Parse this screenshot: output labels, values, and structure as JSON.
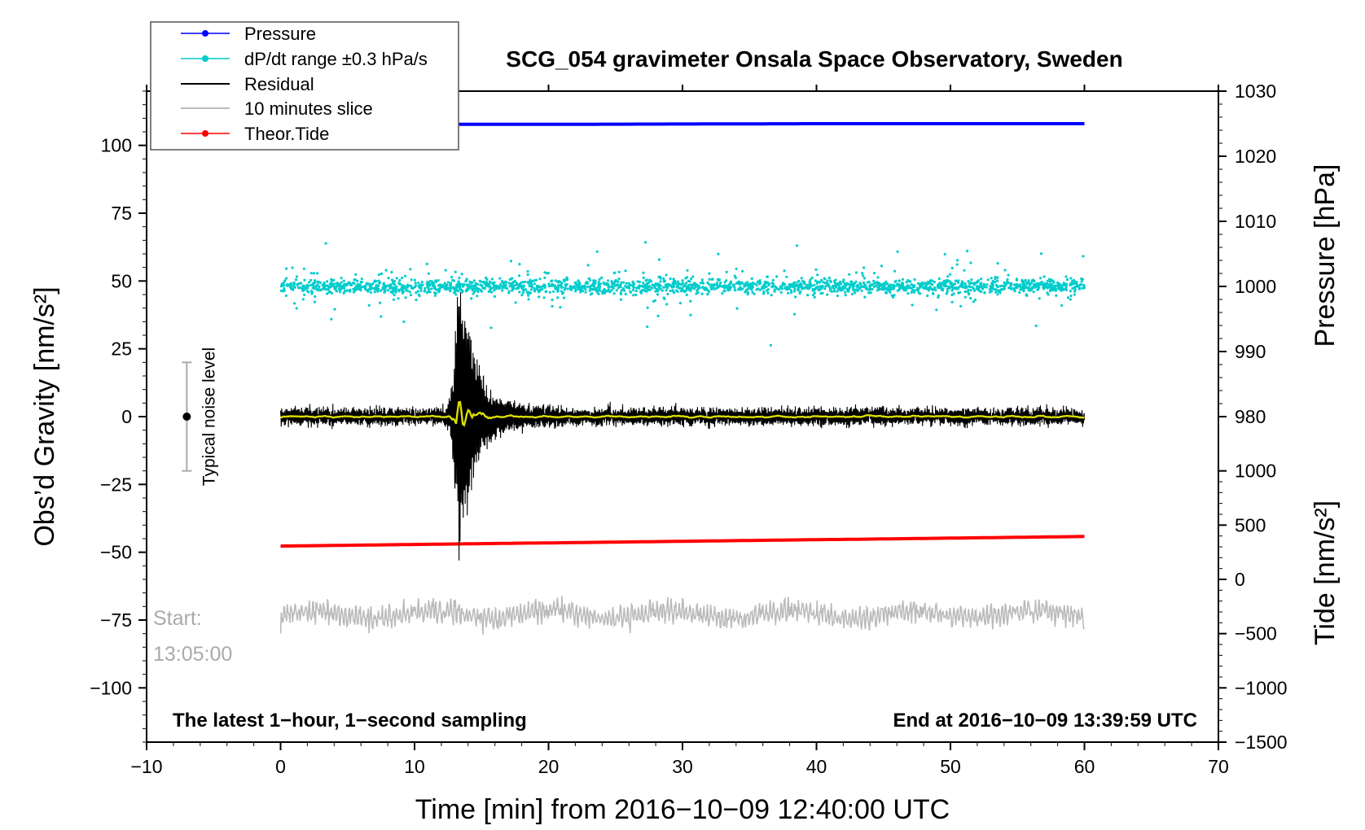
{
  "chart_data": {
    "type": "line",
    "title": "SCG_054 gravimeter Onsala Space Observatory, Sweden",
    "xlabel": "Time [min] from 2016−10−09 12:40:00 UTC",
    "ylabel_left": "Obs’d Gravity [nm/s²]",
    "ylabel_pressure": "Pressure [hPa]",
    "ylabel_tide": "Tide [nm/s²]",
    "xlim": [
      -10,
      70
    ],
    "ylim_left": [
      -120,
      120
    ],
    "x_ticks": [
      -10,
      0,
      10,
      20,
      30,
      40,
      50,
      60,
      70
    ],
    "x_tick_labels": [
      "−10",
      "0",
      "10",
      "20",
      "30",
      "40",
      "50",
      "60",
      "70"
    ],
    "y_ticks_left": [
      100,
      75,
      50,
      25,
      0,
      -25,
      -50,
      -75,
      -100
    ],
    "y_tick_labels_left": [
      "100",
      "75",
      "50",
      "25",
      "0",
      "−25",
      "−50",
      "−75",
      "−100"
    ],
    "pressure_ticks": [
      1030,
      1020,
      1010,
      1000,
      990,
      980
    ],
    "pressure_tick_labels": [
      "1030",
      "1020",
      "1010",
      "1000",
      "990",
      "980"
    ],
    "pressure_axis": {
      "value_top": 1030,
      "value_bottom": 980,
      "left_value_top": 120,
      "left_value_bottom": 0
    },
    "tide_ticks": [
      1000,
      500,
      0,
      -500,
      -1000,
      -1500
    ],
    "tide_tick_labels": [
      "1000",
      "500",
      "0",
      "−500",
      "−1000",
      "−1500"
    ],
    "tide_axis": {
      "value_top": 1000,
      "value_bottom": -1500,
      "left_value_top": -20,
      "left_value_bottom": -120
    },
    "series": [
      {
        "name": "Pressure",
        "color": "#0000ff",
        "x_range": [
          0,
          60
        ],
        "pressure_hPa": [
          1024.9,
          1024.9,
          1025.0,
          1025.0
        ]
      },
      {
        "name": "dP/dt range ±0.3 hPa/s",
        "color": "#00cccc",
        "x_range": [
          0,
          60
        ],
        "center_pressure_hPa": 1000
      },
      {
        "name": "Residual",
        "color": "#000000",
        "x_range": [
          0,
          60
        ],
        "baseline": 0,
        "typical_amplitude": 3,
        "event_peak_minutes": 13.5,
        "event_range": [
          -53,
          52
        ]
      },
      {
        "name": "10 minutes slice",
        "color": "#bbbbbb",
        "x_range": [
          0,
          60
        ],
        "center": -73
      },
      {
        "name": "Theor.Tide",
        "color": "#ff0000",
        "x_range": [
          0,
          60
        ],
        "tide_nm_s2": [
          307,
          395
        ]
      }
    ],
    "smoothed_residual_color": "#dddd00",
    "noise_level": {
      "label": "Typical noise level",
      "x": -7,
      "center": 0,
      "range": [
        -20,
        20
      ]
    },
    "start_label": "Start:",
    "start_time": "13:05:00",
    "footer_left": "The latest 1−hour, 1−second sampling",
    "footer_right": "End at 2016−10−09 13:39:59 UTC"
  },
  "legend": [
    {
      "label": "Pressure",
      "color": "#0000ff",
      "marker": true
    },
    {
      "label": "dP/dt range ±0.3 hPa/s",
      "color": "#00cccc",
      "marker": true
    },
    {
      "label": "Residual",
      "color": "#000000",
      "marker": false
    },
    {
      "label": "10 minutes slice",
      "color": "#bbbbbb",
      "marker": false
    },
    {
      "label": "Theor.Tide",
      "color": "#ff0000",
      "marker": true
    }
  ]
}
